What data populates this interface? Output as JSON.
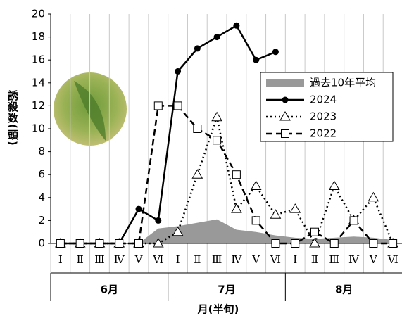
{
  "chart_data": {
    "type": "line",
    "y_label": "誘殺数(頭)",
    "x_label": "月(半旬)",
    "categories": [
      "Ⅰ",
      "Ⅱ",
      "Ⅲ",
      "Ⅳ",
      "Ⅴ",
      "Ⅵ",
      "Ⅰ",
      "Ⅱ",
      "Ⅲ",
      "Ⅳ",
      "Ⅴ",
      "Ⅵ",
      "Ⅰ",
      "Ⅱ",
      "Ⅲ",
      "Ⅳ",
      "Ⅴ",
      "Ⅵ"
    ],
    "groups": [
      "6月",
      "7月",
      "8月"
    ],
    "ylim": [
      0,
      20
    ],
    "yticks": [
      0,
      2,
      4,
      6,
      8,
      10,
      12,
      14,
      16,
      18,
      20
    ],
    "series": [
      {
        "name": "過去10年平均",
        "type": "area",
        "color": "#999999",
        "values": [
          0,
          0,
          0,
          0,
          0,
          1.3,
          1.5,
          1.8,
          2.1,
          1.2,
          1.0,
          0.7,
          0.5,
          0.4,
          0.5,
          0.6,
          0.5,
          0.3
        ]
      },
      {
        "name": "2024",
        "color": "#000000",
        "style": "solid",
        "marker": "circle",
        "values": [
          0,
          0,
          0,
          0,
          3,
          2,
          15,
          17,
          18,
          19,
          16,
          16.7,
          null,
          null,
          null,
          null,
          null,
          null
        ]
      },
      {
        "name": "2023",
        "color": "#000000",
        "style": "dotted",
        "marker": "triangle",
        "values": [
          0,
          0,
          0,
          0,
          0,
          0,
          1,
          6,
          11,
          3,
          5,
          2.5,
          3,
          0,
          5,
          2,
          4,
          0
        ]
      },
      {
        "name": "2022",
        "color": "#000000",
        "style": "dashed",
        "marker": "square",
        "values": [
          0,
          0,
          0,
          0,
          0,
          12,
          12,
          10,
          9,
          6,
          2,
          0,
          0,
          1,
          0,
          2,
          0,
          0
        ]
      }
    ]
  }
}
